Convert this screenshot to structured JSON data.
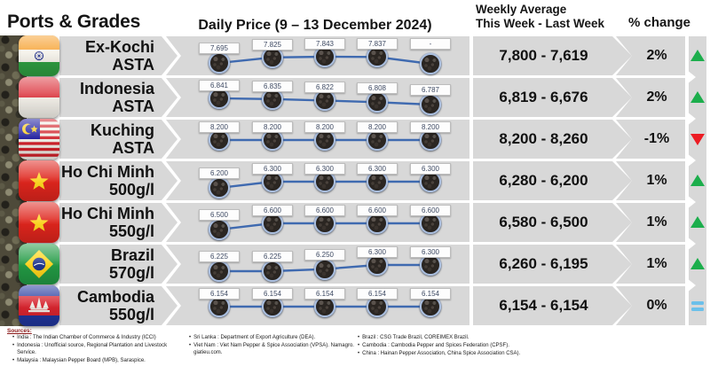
{
  "header": {
    "ports_grades": "Ports & Grades",
    "daily_price": "Daily Price (9 – 13 December 2024)",
    "weekly_average_line1": "Weekly Average",
    "weekly_average_line2": "This Week - Last Week",
    "percent_change": "% change"
  },
  "rows": [
    {
      "port": "Ex-Kochi",
      "grade": "ASTA",
      "flag": "india",
      "daily_labels": [
        "7.695",
        "7.825",
        "7.843",
        "7.837",
        "-"
      ],
      "weekly_average": "7,800 - 7,619",
      "percent_change": "2%",
      "direction": "up"
    },
    {
      "port": "Indonesia",
      "grade": "ASTA",
      "flag": "indonesia",
      "daily_labels": [
        "6.841",
        "6.835",
        "6.822",
        "6.808",
        "6.787"
      ],
      "weekly_average": "6,819 - 6,676",
      "percent_change": "2%",
      "direction": "up"
    },
    {
      "port": "Kuching",
      "grade": "ASTA",
      "flag": "malaysia",
      "daily_labels": [
        "8.200",
        "8.200",
        "8.200",
        "8.200",
        "8.200"
      ],
      "weekly_average": "8,200 - 8,260",
      "percent_change": "-1%",
      "direction": "down"
    },
    {
      "port": "Ho Chi Minh",
      "grade": "500g/l",
      "flag": "vietnam",
      "daily_labels": [
        "6.200",
        "6.300",
        "6.300",
        "6.300",
        "6.300"
      ],
      "weekly_average": "6,280 - 6,200",
      "percent_change": "1%",
      "direction": "up"
    },
    {
      "port": "Ho Chi Minh",
      "grade": "550g/l",
      "flag": "vietnam",
      "daily_labels": [
        "6.500",
        "6.600",
        "6.600",
        "6.600",
        "6.600"
      ],
      "weekly_average": "6,580 - 6,500",
      "percent_change": "1%",
      "direction": "up"
    },
    {
      "port": "Brazil",
      "grade": "570g/l",
      "flag": "brazil",
      "daily_labels": [
        "6.225",
        "6.225",
        "6.250",
        "6.300",
        "6.300"
      ],
      "weekly_average": "6,260 - 6,195",
      "percent_change": "1%",
      "direction": "up"
    },
    {
      "port": "Cambodia",
      "grade": "550g/l",
      "flag": "cambodia",
      "daily_labels": [
        "6.154",
        "6.154",
        "6.154",
        "6.154",
        "6.154"
      ],
      "weekly_average": "6,154 - 6,154",
      "percent_change": "0%",
      "direction": "flat"
    }
  ],
  "chart_data": {
    "type": "line",
    "title": "Daily Price (9 – 13 December 2024)",
    "x_points": 5,
    "grid": "off",
    "legend": "off",
    "series": [
      {
        "name": "Ex-Kochi ASTA",
        "values": [
          7695,
          7825,
          7843,
          7837,
          null
        ],
        "weekly_average_this_week": 7800,
        "weekly_average_last_week": 7619,
        "percent_change": 2
      },
      {
        "name": "Indonesia ASTA",
        "values": [
          6841,
          6835,
          6822,
          6808,
          6787
        ],
        "weekly_average_this_week": 6819,
        "weekly_average_last_week": 6676,
        "percent_change": 2
      },
      {
        "name": "Kuching ASTA",
        "values": [
          8200,
          8200,
          8200,
          8200,
          8200
        ],
        "weekly_average_this_week": 8200,
        "weekly_average_last_week": 8260,
        "percent_change": -1
      },
      {
        "name": "Ho Chi Minh 500g/l",
        "values": [
          6200,
          6300,
          6300,
          6300,
          6300
        ],
        "weekly_average_this_week": 6280,
        "weekly_average_last_week": 6200,
        "percent_change": 1
      },
      {
        "name": "Ho Chi Minh 550g/l",
        "values": [
          6500,
          6600,
          6600,
          6600,
          6600
        ],
        "weekly_average_this_week": 6580,
        "weekly_average_last_week": 6500,
        "percent_change": 1
      },
      {
        "name": "Brazil 570g/l",
        "values": [
          6225,
          6225,
          6250,
          6300,
          6300
        ],
        "weekly_average_this_week": 6260,
        "weekly_average_last_week": 6195,
        "percent_change": 1
      },
      {
        "name": "Cambodia 550g/l",
        "values": [
          6154,
          6154,
          6154,
          6154,
          6154
        ],
        "weekly_average_this_week": 6154,
        "weekly_average_last_week": 6154,
        "percent_change": 0
      }
    ]
  },
  "footer": {
    "sources_label": "Sources:",
    "columns": [
      {
        "items": [
          "India : The Indian Chamber of Commerce & Industry (ICCI)",
          "Indonesia : Unofficial source, Regional Plantation and Livestock Service.",
          "Malaysia : Malaysian Pepper Board (MPB), Saraspice."
        ]
      },
      {
        "items": [
          "Sri Lanka : Department of Export Agriculture (DEA).",
          "Viet Nam : Viet Nam Pepper & Spice Association (VPSA). Namagro. giatieu.com."
        ]
      },
      {
        "items": [
          "Brazil : CSG Trade Brazil, COREIMEX Brazil.",
          "Cambodia : Cambodia Pepper and Spices Federation (CPSF).",
          "China : Hainan Pepper Association, China Spice Association CSA)."
        ]
      }
    ]
  },
  "colors": {
    "line": "#3f6ab0",
    "up": "#1cae4c",
    "down": "#ec1c23",
    "flat": "#6cc0ea",
    "band_bg": "#d8d8d8"
  }
}
